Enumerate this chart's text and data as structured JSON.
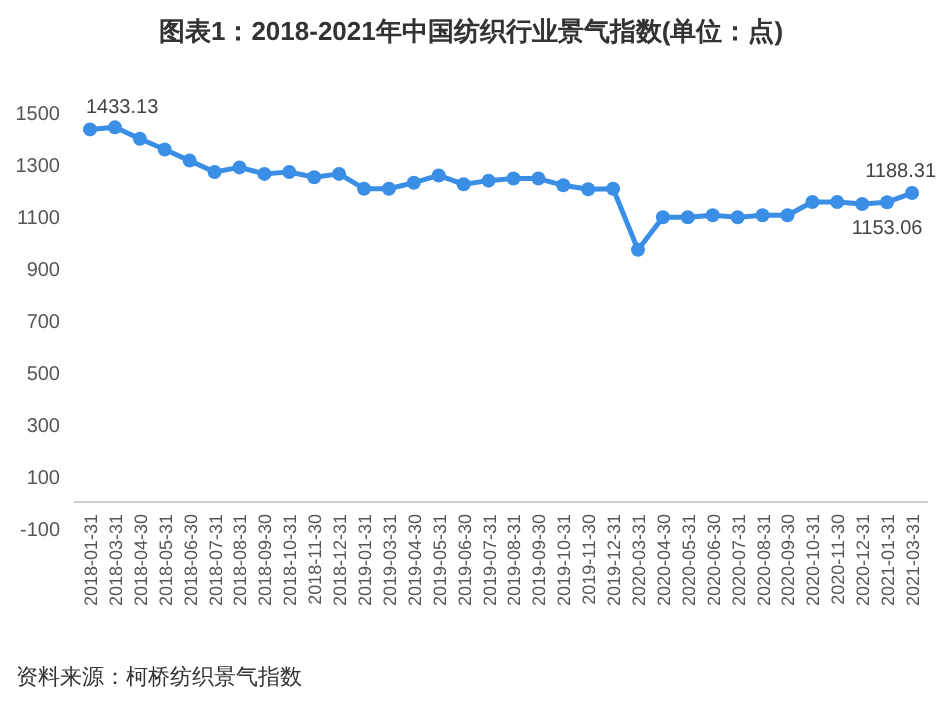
{
  "chart_data": {
    "type": "line",
    "title": "图表1：2018-2021年中国纺织行业景气指数(单位：点)",
    "annotations": [
      "资料来源：柯桥纺织景气指数"
    ],
    "categories": [
      "2018-01-31",
      "2018-03-31",
      "2018-04-30",
      "2018-05-31",
      "2018-06-30",
      "2018-07-31",
      "2018-08-31",
      "2018-09-30",
      "2018-10-31",
      "2018-11-30",
      "2018-12-31",
      "2019-01-31",
      "2019-03-31",
      "2019-04-30",
      "2019-05-31",
      "2019-06-30",
      "2019-07-31",
      "2019-08-31",
      "2019-09-30",
      "2019-10-31",
      "2019-11-30",
      "2019-12-31",
      "2020-03-31",
      "2020-04-30",
      "2020-05-31",
      "2020-06-30",
      "2020-07-31",
      "2020-08-31",
      "2020-09-30",
      "2020-10-31",
      "2020-11-30",
      "2020-12-31",
      "2021-01-31",
      "2021-03-31"
    ],
    "series": [
      {
        "color": "#3a8ee6",
        "values": [
          1433.13,
          1441,
          1397,
          1356,
          1313,
          1269,
          1287,
          1262,
          1269,
          1249,
          1262,
          1205,
          1205,
          1228,
          1256,
          1222,
          1236,
          1244,
          1244,
          1218,
          1203,
          1205,
          970,
          1095,
          1095,
          1103,
          1095,
          1103,
          1103,
          1154,
          1154,
          1146,
          1153.06,
          1188.31
        ],
        "value_labels": [
          "1433.13",
          null,
          null,
          null,
          null,
          null,
          null,
          null,
          null,
          null,
          null,
          null,
          null,
          null,
          null,
          null,
          null,
          null,
          null,
          null,
          null,
          null,
          null,
          null,
          null,
          null,
          null,
          null,
          null,
          null,
          null,
          null,
          "1153.06",
          "1188.31"
        ]
      }
    ],
    "ylim": [
      -100,
      1500
    ],
    "yticks": [
      -100,
      100,
      300,
      500,
      700,
      900,
      1100,
      1300,
      1500
    ],
    "marker": "circle",
    "line_style": "solid",
    "grid": false
  }
}
